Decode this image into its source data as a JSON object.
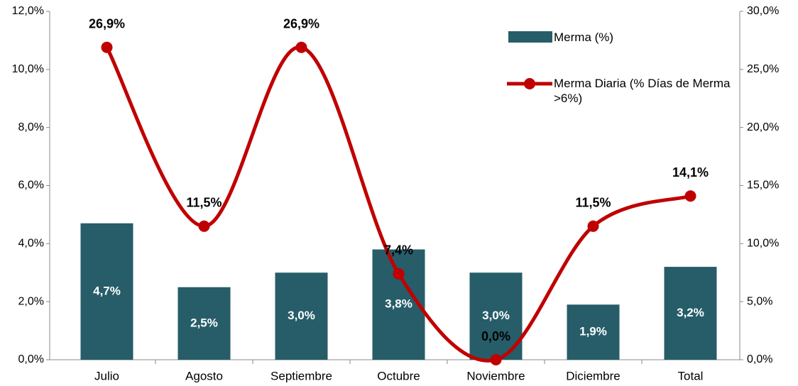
{
  "chart_data": {
    "type": "bar-line",
    "categories": [
      "Julio",
      "Agosto",
      "Septiembre",
      "Octubre",
      "Noviembre",
      "Diciembre",
      "Total"
    ],
    "series": [
      {
        "name": "Merma (%)",
        "type": "bar",
        "axis": "y",
        "color": "#265d69",
        "values": [
          4.7,
          2.5,
          3.0,
          3.8,
          3.0,
          1.9,
          3.2
        ],
        "value_labels": [
          "4,7%",
          "2,5%",
          "3,0%",
          "3,8%",
          "3,0%",
          "1,9%",
          "3,2%"
        ]
      },
      {
        "name": "Merma Diaria (% Días de Merma >6%)",
        "type": "line",
        "axis": "y2",
        "color": "#c00000",
        "values": [
          26.9,
          11.5,
          26.9,
          7.4,
          0.0,
          11.5,
          14.1
        ],
        "value_labels": [
          "26,9%",
          "11,5%",
          "26,9%",
          "7,4%",
          "0,0%",
          "11,5%",
          "14,1%"
        ]
      }
    ],
    "ylim": [
      0,
      12
    ],
    "yticks": [
      {
        "value": 0,
        "label": "0,0%"
      },
      {
        "value": 2,
        "label": "2,0%"
      },
      {
        "value": 4,
        "label": "4,0%"
      },
      {
        "value": 6,
        "label": "6,0%"
      },
      {
        "value": 8,
        "label": "8,0%"
      },
      {
        "value": 10,
        "label": "10,0%"
      },
      {
        "value": 12,
        "label": "12,0%"
      }
    ],
    "y2lim": [
      0,
      30
    ],
    "y2ticks": [
      {
        "value": 0,
        "label": "0,0%"
      },
      {
        "value": 5,
        "label": "5,0%"
      },
      {
        "value": 10,
        "label": "10,0%"
      },
      {
        "value": 15,
        "label": "15,0%"
      },
      {
        "value": 20,
        "label": "20,0%"
      },
      {
        "value": 25,
        "label": "25,0%"
      },
      {
        "value": 30,
        "label": "30,0%"
      }
    ],
    "legend": "upper right",
    "grid": false
  }
}
